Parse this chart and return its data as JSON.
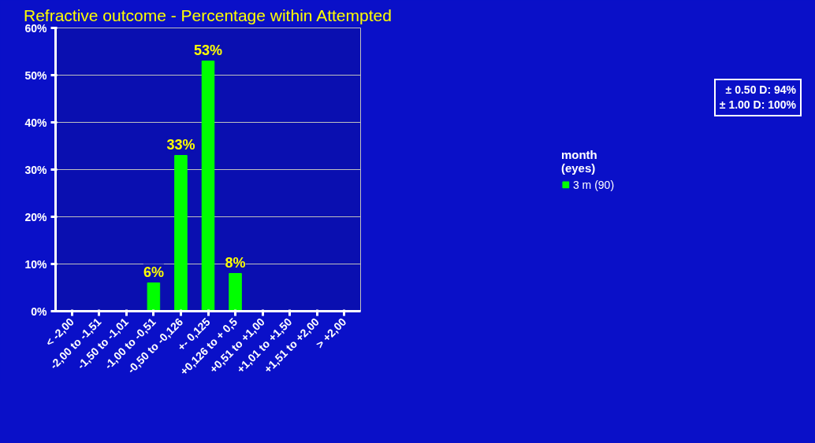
{
  "chart_data": {
    "type": "bar",
    "title": "Refractive outcome - Percentage within Attempted",
    "categories": [
      "< -2,00",
      "-2,00 to -1,51",
      "-1,50 to -1,01",
      "-1,00 to -0,51",
      "-0,50 to -0,126",
      "+- 0,125",
      "+0,126 to + 0,5",
      "+0,51 to +1,00",
      "+1,01 to +1,50",
      "+1,51 to +2,00",
      "> +2,00"
    ],
    "series": [
      {
        "name": "3 m (90)",
        "color": "#00ff00",
        "values": [
          0,
          0,
          0,
          6,
          33,
          53,
          8,
          0,
          0,
          0,
          0
        ],
        "value_labels": [
          null,
          null,
          null,
          "6%",
          "33%",
          "53%",
          "8%",
          null,
          null,
          null,
          null
        ]
      }
    ],
    "ylim": [
      0,
      60
    ],
    "yticks": [
      {
        "value": 0,
        "label": "0%"
      },
      {
        "value": 10,
        "label": "10%"
      },
      {
        "value": 20,
        "label": "20%"
      },
      {
        "value": 30,
        "label": "30%"
      },
      {
        "value": 40,
        "label": "40%"
      },
      {
        "value": 50,
        "label": "50%"
      },
      {
        "value": 60,
        "label": "60%"
      }
    ],
    "grid": "y",
    "legend": "right",
    "legend_title": "month\n(eyes)",
    "annotations": [
      "± 0.50 D: 94%\n± 1.00 D: 100%"
    ]
  }
}
